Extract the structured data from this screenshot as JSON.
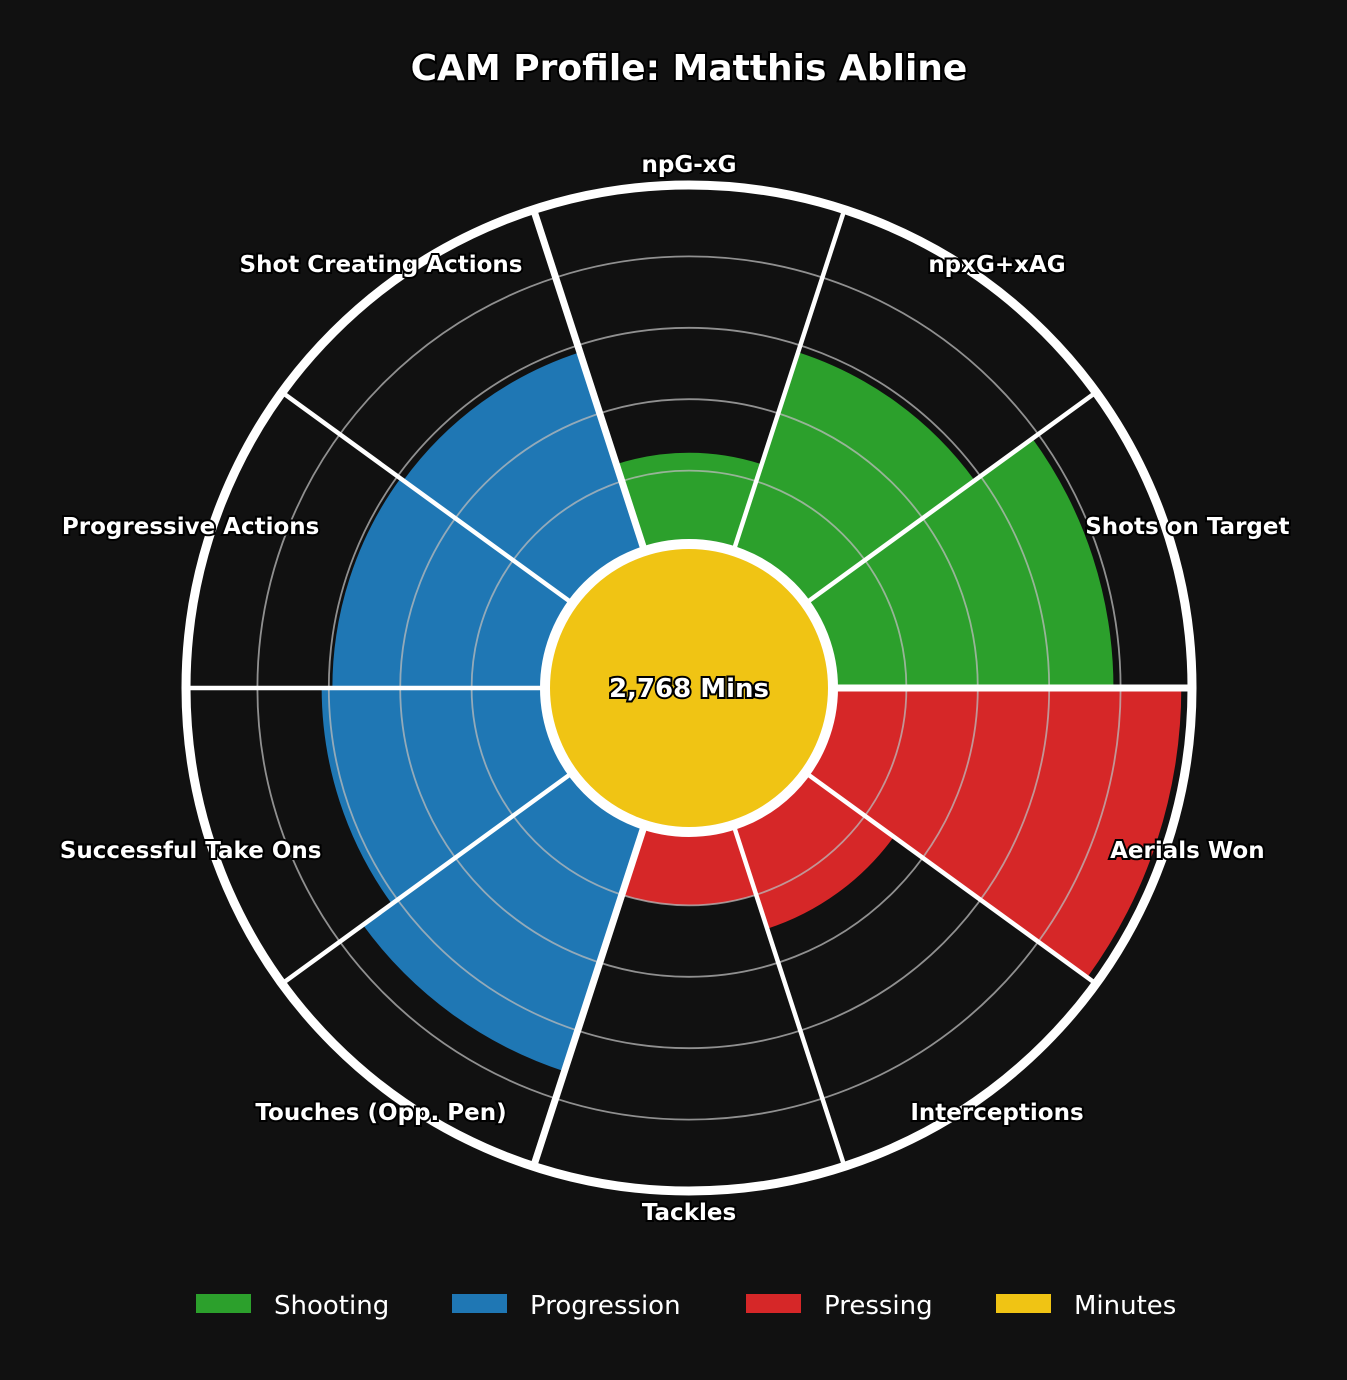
{
  "chart_data": {
    "type": "pie",
    "subtype": "polar-area",
    "title": "CAM Profile: Matthis Abline",
    "center_label": "2,768 Mins",
    "rlim": [
      0,
      100
    ],
    "grid": true,
    "legend_placement": "bottom",
    "categories": [
      "npG-xG",
      "npxG+xAG",
      "Shots on Target",
      "Aerials Won",
      "Interceptions",
      "Tackles",
      "Touches (Opp. Pen)",
      "Successful Take Ons",
      "Progressive Actions",
      "Shot Creating Actions"
    ],
    "values": [
      25,
      58,
      78,
      97,
      30,
      20,
      72,
      62,
      59,
      58
    ],
    "groups": [
      "Shooting",
      "Shooting",
      "Shooting",
      "Pressing",
      "Pressing",
      "Pressing",
      "Progression",
      "Progression",
      "Progression",
      "Progression"
    ],
    "legend": [
      {
        "name": "Shooting",
        "color": "#2ca02c"
      },
      {
        "name": "Progression",
        "color": "#1f77b4"
      },
      {
        "name": "Pressing",
        "color": "#d62728"
      },
      {
        "name": "Minutes",
        "color": "#f0c414"
      }
    ]
  }
}
